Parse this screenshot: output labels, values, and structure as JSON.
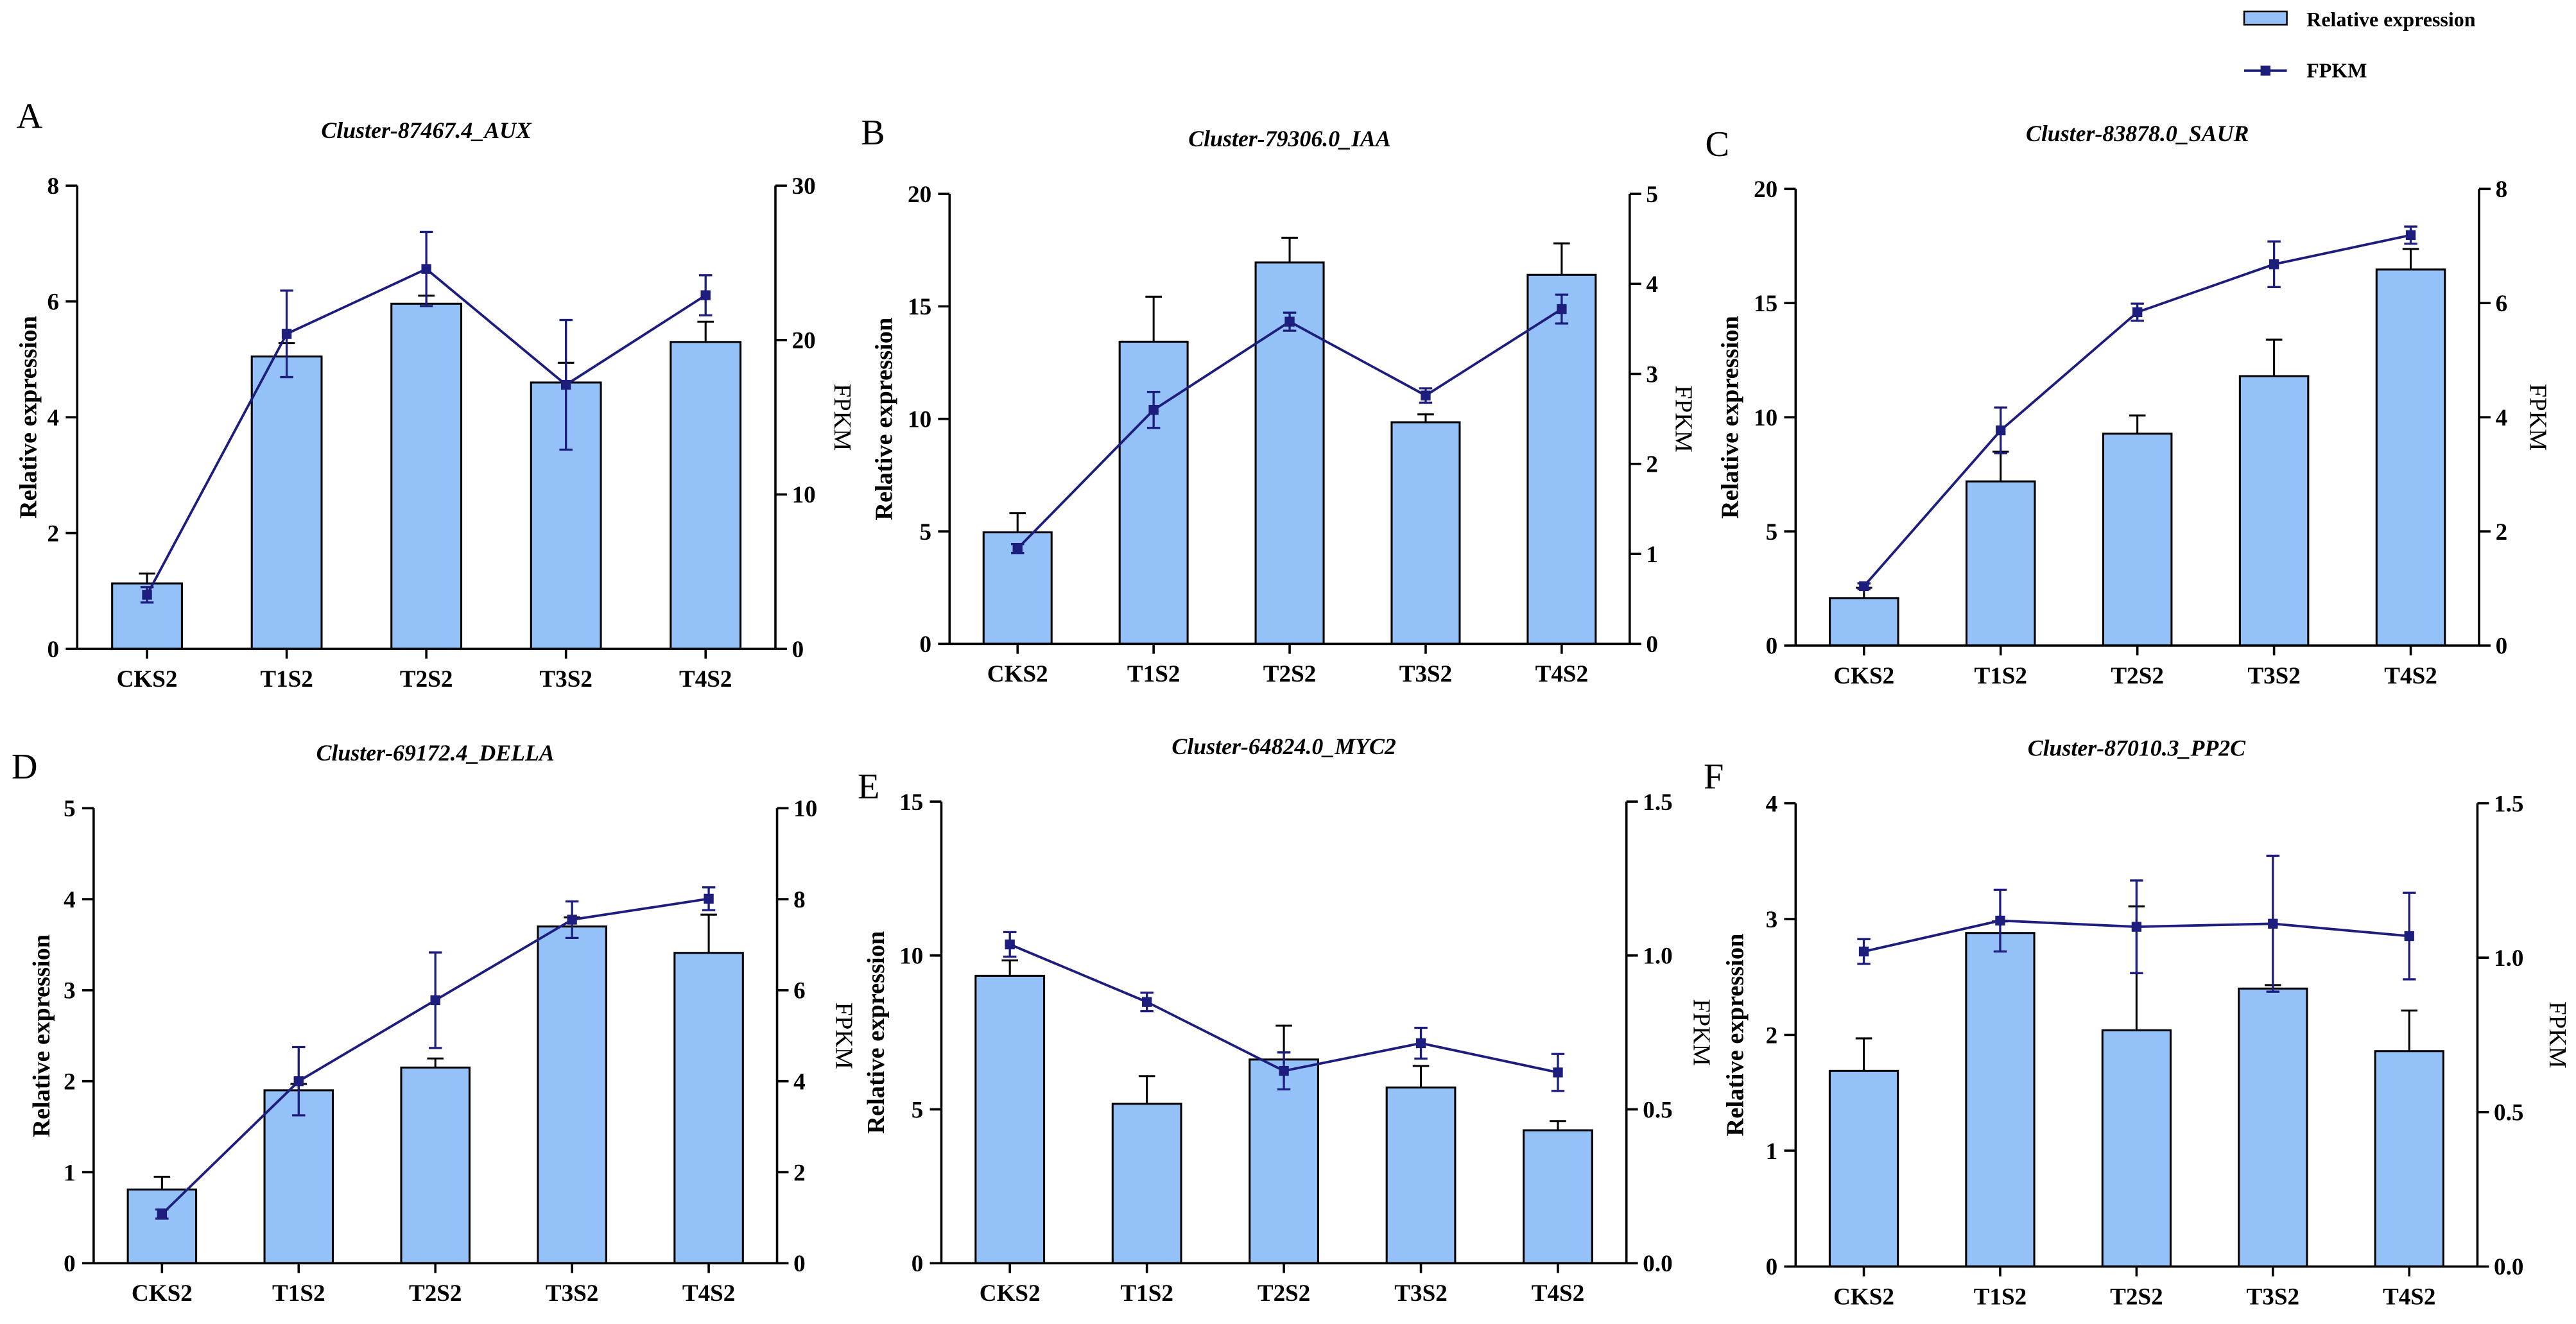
{
  "legend": {
    "bar_label": "Relative expression",
    "line_label": "FPKM"
  },
  "colors": {
    "bar_fill": "#94c1f7",
    "bar_stroke": "#000000",
    "axis": "#000000",
    "fpkm": "#1d1d7e",
    "background": "#ffffff"
  },
  "chart_data": [
    {
      "panel": "A",
      "type": "bar",
      "title": "Cluster-87467.4_AUX",
      "categories": [
        "CKS2",
        "T1S2",
        "T2S2",
        "T3S2",
        "T4S2"
      ],
      "ylabel": "Relative expression",
      "ylim": [
        0,
        8
      ],
      "yticks": [
        "0",
        "2",
        "4",
        "6",
        "8"
      ],
      "y2label": "FPKM",
      "y2lim": [
        0,
        30
      ],
      "y2ticks": [
        "0",
        "10",
        "20",
        "30"
      ],
      "bars": {
        "values": [
          1.13,
          5.05,
          5.96,
          4.6,
          5.3
        ],
        "errors": [
          0.17,
          0.23,
          0.14,
          0.34,
          0.35
        ]
      },
      "line": {
        "values": [
          3.5,
          20.4,
          24.6,
          17.1,
          22.9
        ],
        "errors": [
          0.5,
          2.8,
          2.4,
          4.2,
          1.3
        ]
      }
    },
    {
      "panel": "B",
      "type": "bar",
      "title": "Cluster-79306.0_IAA",
      "categories": [
        "CKS2",
        "T1S2",
        "T2S2",
        "T3S2",
        "T4S2"
      ],
      "ylabel": "Relative expression",
      "ylim": [
        0,
        20
      ],
      "yticks": [
        "0",
        "5",
        "10",
        "15",
        "20"
      ],
      "y2label": "FPKM",
      "y2lim": [
        0,
        5
      ],
      "y2ticks": [
        "0",
        "1",
        "2",
        "3",
        "4",
        "5"
      ],
      "bars": {
        "values": [
          4.96,
          13.43,
          16.95,
          9.85,
          16.4
        ],
        "errors": [
          0.85,
          2.0,
          1.1,
          0.35,
          1.4
        ]
      },
      "line": {
        "values": [
          1.06,
          2.6,
          3.58,
          2.76,
          3.72
        ],
        "errors": [
          0.05,
          0.2,
          0.1,
          0.08,
          0.16
        ]
      }
    },
    {
      "panel": "C",
      "type": "bar",
      "title": "Cluster-83878.0_SAUR",
      "categories": [
        "CKS2",
        "T1S2",
        "T2S2",
        "T3S2",
        "T4S2"
      ],
      "ylabel": "Relative expression",
      "ylim": [
        0,
        20
      ],
      "yticks": [
        "0",
        "5",
        "10",
        "15",
        "20"
      ],
      "y2label": "FPKM",
      "y2lim": [
        0,
        8
      ],
      "y2ticks": [
        "0",
        "2",
        "4",
        "6",
        "8"
      ],
      "bars": {
        "values": [
          2.08,
          7.19,
          9.28,
          11.8,
          16.47
        ],
        "errors": [
          0.45,
          1.3,
          0.8,
          1.6,
          0.9
        ]
      },
      "line": {
        "values": [
          1.04,
          3.77,
          5.84,
          6.68,
          7.19
        ],
        "errors": [
          0.05,
          0.4,
          0.15,
          0.4,
          0.15
        ]
      }
    },
    {
      "panel": "D",
      "type": "bar",
      "title": "Cluster-69172.4_DELLA",
      "categories": [
        "CKS2",
        "T1S2",
        "T2S2",
        "T3S2",
        "T4S2"
      ],
      "ylabel": "Relative expression",
      "ylim": [
        0,
        5
      ],
      "yticks": [
        "0",
        "1",
        "2",
        "3",
        "4",
        "5"
      ],
      "y2label": "FPKM",
      "y2lim": [
        0,
        10
      ],
      "y2ticks": [
        "0",
        "2",
        "4",
        "6",
        "8",
        "10"
      ],
      "bars": {
        "values": [
          0.81,
          1.9,
          2.15,
          3.7,
          3.41
        ],
        "errors": [
          0.14,
          0.07,
          0.1,
          0.1,
          0.42
        ]
      },
      "line": {
        "values": [
          1.08,
          4.0,
          5.78,
          7.55,
          8.01
        ],
        "errors": [
          0.1,
          0.75,
          1.05,
          0.4,
          0.25
        ]
      }
    },
    {
      "panel": "E",
      "type": "bar",
      "title": "Cluster-64824.0_MYC2",
      "categories": [
        "CKS2",
        "T1S2",
        "T2S2",
        "T3S2",
        "T4S2"
      ],
      "ylabel": "Relative expression",
      "ylim": [
        0,
        15
      ],
      "yticks": [
        "0",
        "5",
        "10",
        "15"
      ],
      "y2label": "FPKM",
      "y2lim": [
        0,
        1.5
      ],
      "y2ticks": [
        "0.0",
        "0.5",
        "1.0",
        "1.5"
      ],
      "bars": {
        "values": [
          9.34,
          5.18,
          6.62,
          5.71,
          4.32
        ],
        "errors": [
          0.5,
          0.9,
          1.1,
          0.7,
          0.3
        ]
      },
      "line": {
        "values": [
          1.036,
          0.849,
          0.625,
          0.715,
          0.62
        ],
        "errors": [
          0.04,
          0.03,
          0.06,
          0.05,
          0.06
        ]
      }
    },
    {
      "panel": "F",
      "type": "bar",
      "title": "Cluster-87010.3_PP2C",
      "categories": [
        "CKS2",
        "T1S2",
        "T2S2",
        "T3S2",
        "T4S2"
      ],
      "ylabel": "Relative expression",
      "ylim": [
        0,
        4
      ],
      "yticks": [
        "0",
        "1",
        "2",
        "3",
        "4"
      ],
      "y2label": "FPKM",
      "y2lim": [
        0,
        1.5
      ],
      "y2ticks": [
        "0.0",
        "0.5",
        "1.0",
        "1.5"
      ],
      "bars": {
        "values": [
          1.69,
          2.88,
          2.04,
          2.4,
          1.86
        ],
        "errors": [
          0.28,
          0.1,
          1.07,
          0.03,
          0.35
        ]
      },
      "line": {
        "values": [
          1.02,
          1.12,
          1.1,
          1.11,
          1.07
        ],
        "errors": [
          0.04,
          0.1,
          0.15,
          0.22,
          0.14
        ]
      }
    }
  ]
}
